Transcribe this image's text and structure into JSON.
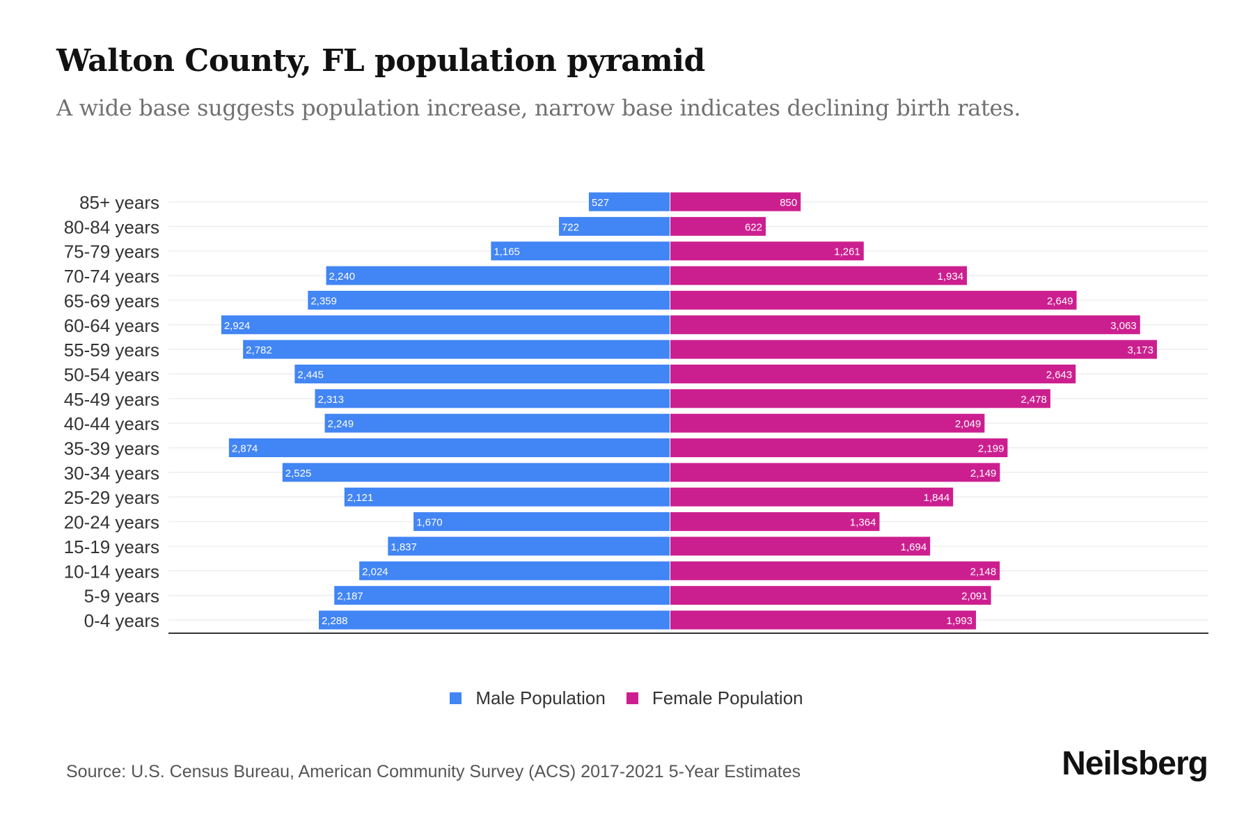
{
  "header": {
    "title": "Walton County, FL population pyramid",
    "subtitle": "A wide base suggests population increase, narrow base indicates declining birth rates."
  },
  "legend": {
    "male_label": "Male Population",
    "female_label": "Female Population"
  },
  "footer": {
    "source": "Source: U.S. Census Bureau, American Community Survey (ACS) 2017-2021 5-Year Estimates",
    "logo": "Neilsberg"
  },
  "colors": {
    "male": "#4285f4",
    "female": "#cc1f8f",
    "gridline": "#eeeeee",
    "axis": "#333333"
  },
  "chart_data": {
    "type": "bar",
    "orientation": "horizontal-pyramid",
    "title": "Walton County, FL population pyramid",
    "xlabel": "",
    "ylabel": "",
    "grid": true,
    "legend_position": "bottom-center",
    "categories": [
      "85+ years",
      "80-84 years",
      "75-79 years",
      "70-74 years",
      "65-69 years",
      "60-64 years",
      "55-59 years",
      "50-54 years",
      "45-49 years",
      "40-44 years",
      "35-39 years",
      "30-34 years",
      "25-29 years",
      "20-24 years",
      "15-19 years",
      "10-14 years",
      "5-9 years",
      "0-4 years"
    ],
    "series": [
      {
        "name": "Male Population",
        "values": [
          527,
          722,
          1165,
          2240,
          2359,
          2924,
          2782,
          2445,
          2313,
          2249,
          2874,
          2525,
          2121,
          1670,
          1837,
          2024,
          2187,
          2288
        ]
      },
      {
        "name": "Female Population",
        "values": [
          850,
          622,
          1261,
          1934,
          2649,
          3063,
          3173,
          2643,
          2478,
          2049,
          2199,
          2149,
          1844,
          1364,
          1694,
          2148,
          2091,
          1993
        ]
      }
    ],
    "labels_male": [
      "527",
      "722",
      "1,165",
      "2,240",
      "2,359",
      "2,924",
      "2,782",
      "2,445",
      "2,313",
      "2,249",
      "2,874",
      "2,525",
      "2,121",
      "1,670",
      "1,837",
      "2,024",
      "2,187",
      "2,288"
    ],
    "labels_female": [
      "850",
      "622",
      "1,261",
      "1,934",
      "2,649",
      "3,063",
      "3,173",
      "2,643",
      "2,478",
      "2,049",
      "2,199",
      "2,149",
      "1,844",
      "1,364",
      "1,694",
      "2,148",
      "2,091",
      "1,993"
    ]
  }
}
